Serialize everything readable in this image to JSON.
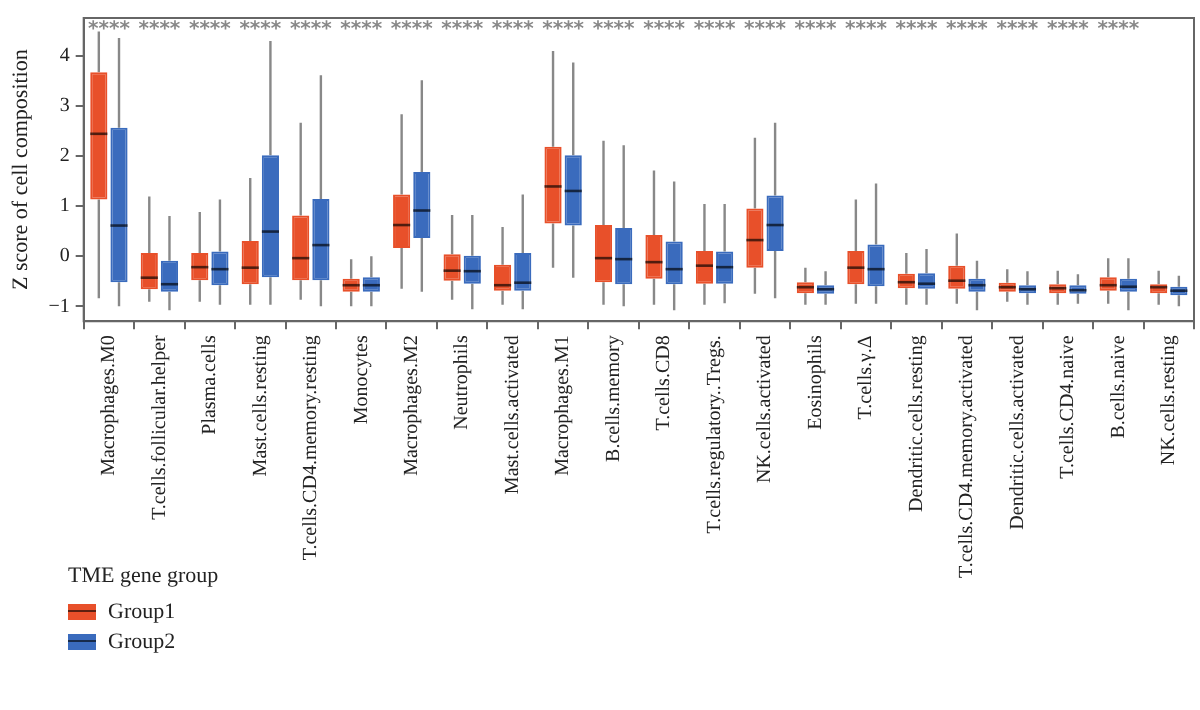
{
  "chart_data": {
    "type": "box",
    "ylabel": "Z score of cell composition",
    "legend_title": "TME gene group",
    "legend": "bottom left",
    "grid": false,
    "categories": [
      "Macrophages.M0",
      "T.cells.follicular.helper",
      "Plasma.cells",
      "Mast.cells.resting",
      "T.cells.CD4.memory.resting",
      "Monocytes",
      "Macrophages.M2",
      "Neutrophils",
      "Mast.cells.activated",
      "Macrophages.M1",
      "B.cells.memory",
      "T.cells.CD8",
      "T.cells.regulatory..Tregs.",
      "NK.cells.activated",
      "Eosinophils",
      "T.cells.γ.Δ",
      "Dendritic.cells.resting",
      "T.cells.CD4.memory.activated",
      "Dendritic.cells.activated",
      "T.cells.CD4.naive",
      "B.cells.naive",
      "NK.cells.resting"
    ],
    "ylim": [
      -1.3,
      4.75
    ],
    "yticks": [
      -1,
      0,
      1,
      2,
      3,
      4
    ],
    "series": [
      {
        "name": "Group1",
        "color": "#e8502a",
        "boxes": [
          {
            "low": -0.84,
            "q1": 1.13,
            "median": 2.44,
            "q3": 3.67,
            "high": 4.48
          },
          {
            "low": -0.91,
            "q1": -0.66,
            "median": -0.43,
            "q3": 0.06,
            "high": 1.19
          },
          {
            "low": -0.91,
            "q1": -0.48,
            "median": -0.22,
            "q3": 0.06,
            "high": 0.88
          },
          {
            "low": -0.97,
            "q1": -0.56,
            "median": -0.23,
            "q3": 0.3,
            "high": 1.56
          },
          {
            "low": -0.87,
            "q1": -0.48,
            "median": -0.04,
            "q3": 0.81,
            "high": 2.66
          },
          {
            "low": -1.0,
            "q1": -0.71,
            "median": -0.58,
            "q3": -0.45,
            "high": -0.06
          },
          {
            "low": -0.65,
            "q1": 0.16,
            "median": 0.62,
            "q3": 1.23,
            "high": 2.83
          },
          {
            "low": -0.87,
            "q1": -0.49,
            "median": -0.29,
            "q3": 0.04,
            "high": 0.82
          },
          {
            "low": -0.97,
            "q1": -0.69,
            "median": -0.58,
            "q3": -0.17,
            "high": 0.58
          },
          {
            "low": -0.23,
            "q1": 0.65,
            "median": 1.39,
            "q3": 2.18,
            "high": 4.09
          },
          {
            "low": -0.97,
            "q1": -0.52,
            "median": -0.04,
            "q3": 0.62,
            "high": 2.3
          },
          {
            "low": -0.97,
            "q1": -0.45,
            "median": -0.12,
            "q3": 0.42,
            "high": 1.71
          },
          {
            "low": -0.97,
            "q1": -0.55,
            "median": -0.19,
            "q3": 0.1,
            "high": 1.04
          },
          {
            "low": -0.75,
            "q1": -0.23,
            "median": 0.32,
            "q3": 0.95,
            "high": 2.36
          },
          {
            "low": -0.97,
            "q1": -0.74,
            "median": -0.62,
            "q3": -0.52,
            "high": -0.23
          },
          {
            "low": -0.95,
            "q1": -0.56,
            "median": -0.23,
            "q3": 0.1,
            "high": 1.13
          },
          {
            "low": -0.97,
            "q1": -0.64,
            "median": -0.52,
            "q3": -0.35,
            "high": 0.06
          },
          {
            "low": -0.95,
            "q1": -0.65,
            "median": -0.49,
            "q3": -0.19,
            "high": 0.45
          },
          {
            "low": -0.91,
            "q1": -0.71,
            "median": -0.62,
            "q3": -0.53,
            "high": -0.26
          },
          {
            "low": -0.97,
            "q1": -0.74,
            "median": -0.64,
            "q3": -0.56,
            "high": -0.29
          },
          {
            "low": -0.95,
            "q1": -0.69,
            "median": -0.58,
            "q3": -0.42,
            "high": -0.04
          },
          {
            "low": -0.97,
            "q1": -0.74,
            "median": -0.62,
            "q3": -0.56,
            "high": -0.29
          }
        ]
      },
      {
        "name": "Group2",
        "color": "#3a6bbd",
        "boxes": [
          {
            "low": -1.0,
            "q1": -0.52,
            "median": 0.61,
            "q3": 2.56,
            "high": 4.35
          },
          {
            "low": -1.08,
            "q1": -0.71,
            "median": -0.56,
            "q3": -0.09,
            "high": 0.8
          },
          {
            "low": -0.97,
            "q1": -0.58,
            "median": -0.26,
            "q3": 0.09,
            "high": 1.13
          },
          {
            "low": -0.97,
            "q1": -0.42,
            "median": 0.49,
            "q3": 2.01,
            "high": 4.29
          },
          {
            "low": -1.0,
            "q1": -0.48,
            "median": 0.22,
            "q3": 1.14,
            "high": 3.61
          },
          {
            "low": -1.0,
            "q1": -0.71,
            "median": -0.58,
            "q3": -0.42,
            "high": 0.0
          },
          {
            "low": -0.71,
            "q1": 0.36,
            "median": 0.91,
            "q3": 1.68,
            "high": 3.51
          },
          {
            "low": -1.06,
            "q1": -0.55,
            "median": -0.3,
            "q3": 0.01,
            "high": 0.82
          },
          {
            "low": -1.06,
            "q1": -0.69,
            "median": -0.53,
            "q3": 0.06,
            "high": 1.23
          },
          {
            "low": -0.43,
            "q1": 0.61,
            "median": 1.3,
            "q3": 2.01,
            "high": 3.86
          },
          {
            "low": -1.0,
            "q1": -0.56,
            "median": -0.06,
            "q3": 0.56,
            "high": 2.21
          },
          {
            "low": -1.08,
            "q1": -0.56,
            "median": -0.26,
            "q3": 0.29,
            "high": 1.49
          },
          {
            "low": -0.94,
            "q1": -0.55,
            "median": -0.22,
            "q3": 0.09,
            "high": 1.04
          },
          {
            "low": -0.84,
            "q1": 0.1,
            "median": 0.62,
            "q3": 1.21,
            "high": 2.66
          },
          {
            "low": -0.97,
            "q1": -0.75,
            "median": -0.66,
            "q3": -0.58,
            "high": -0.3
          },
          {
            "low": -0.95,
            "q1": -0.6,
            "median": -0.26,
            "q3": 0.23,
            "high": 1.45
          },
          {
            "low": -0.97,
            "q1": -0.65,
            "median": -0.55,
            "q3": -0.34,
            "high": 0.14
          },
          {
            "low": -1.08,
            "q1": -0.71,
            "median": -0.58,
            "q3": -0.45,
            "high": -0.09
          },
          {
            "low": -0.97,
            "q1": -0.74,
            "median": -0.66,
            "q3": -0.58,
            "high": -0.3
          },
          {
            "low": -0.95,
            "q1": -0.75,
            "median": -0.68,
            "q3": -0.58,
            "high": -0.36
          },
          {
            "low": -1.08,
            "q1": -0.71,
            "median": -0.61,
            "q3": -0.45,
            "high": -0.04
          },
          {
            "low": -1.0,
            "q1": -0.78,
            "median": -0.69,
            "q3": -0.61,
            "high": -0.39
          }
        ]
      }
    ],
    "annotations": [
      "****",
      "****",
      "****",
      "****",
      "****",
      "****",
      "****",
      "****",
      "****",
      "****",
      "****",
      "****",
      "****",
      "****",
      "****",
      "****",
      "****",
      "****",
      "****",
      "****",
      "****"
    ]
  }
}
